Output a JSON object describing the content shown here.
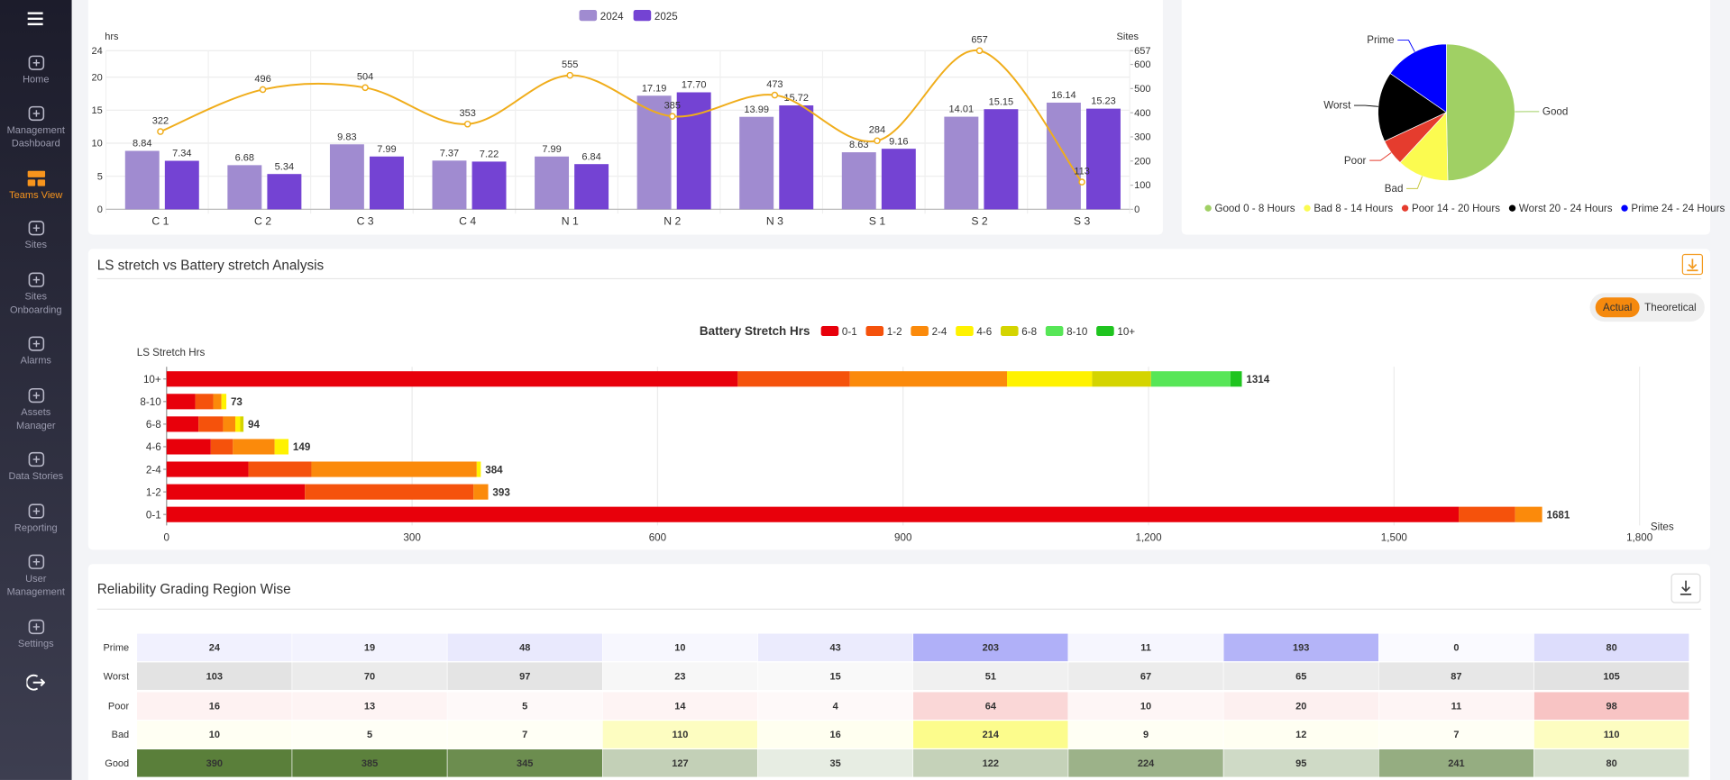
{
  "sidebar": {
    "items": [
      "Home",
      "Management Dashboard",
      "Teams View",
      "Sites",
      "Sites Onboarding",
      "Alarms",
      "Assets Manager",
      "Data Stories",
      "Reporting",
      "User Management",
      "Settings"
    ],
    "active_index": 2
  },
  "controls": {
    "options": [
      "Actual",
      "Theoretical"
    ],
    "selected": 0
  },
  "chart_data": [
    {
      "type": "combo",
      "y_label": "hrs",
      "y2_label": "Sites",
      "categories": [
        "C 1",
        "C 2",
        "C 3",
        "C 4",
        "N 1",
        "N 2",
        "N 3",
        "S 1",
        "S 2",
        "S 3"
      ],
      "series": [
        {
          "name": "2024",
          "kind": "bar",
          "color": "#a08bd0",
          "values": [
            8.84,
            6.68,
            9.83,
            7.37,
            7.99,
            17.19,
            13.99,
            8.63,
            14.01,
            16.14
          ]
        },
        {
          "name": "2025",
          "kind": "bar",
          "color": "#7443d3",
          "values": [
            7.34,
            5.34,
            7.99,
            7.22,
            6.84,
            17.7,
            15.72,
            9.16,
            15.15,
            15.23
          ],
          "value_labels": [
            "7.34",
            "5.34",
            "7.99",
            "7.22",
            "6.84",
            "17.70",
            "15.72",
            "9.16",
            "15.15",
            "15.23"
          ]
        },
        {
          "kind": "line",
          "axis": "y2",
          "color": "#f0ad1b",
          "values": [
            322,
            496,
            504,
            353,
            555,
            385,
            473,
            284,
            657,
            113
          ]
        }
      ],
      "ylim": [
        0,
        24
      ],
      "yticks": [
        0,
        5,
        10,
        15,
        20,
        24
      ],
      "y2lim": [
        0,
        657
      ],
      "y2ticks": [
        0,
        100,
        200,
        300,
        400,
        500,
        600,
        657
      ],
      "grid": true
    },
    {
      "type": "pie",
      "categories": [
        "Good",
        "Bad",
        "Poor",
        "Worst",
        "Prime"
      ],
      "legend": [
        "Good 0 - 8 Hours",
        "Bad 8 - 14 Hours",
        "Poor 14 - 20 Hours",
        "Worst 20 - 24 Hours",
        "Prime 24 - 24 Hours"
      ],
      "values": [
        2044,
        500,
        255,
        683,
        631
      ],
      "colors": [
        "#a0d064",
        "#fbfb50",
        "#e53c2e",
        "#000000",
        "#0000ff"
      ]
    },
    {
      "type": "stacked_hbar",
      "title": "LS stretch vs Battery stretch Analysis",
      "legend_title": "Battery Stretch Hrs",
      "y_label": "LS Stretch Hrs",
      "x_label": "Sites",
      "categories": [
        "0-1",
        "1-2",
        "2-4",
        "4-6",
        "6-8",
        "8-10",
        "10+"
      ],
      "series": [
        {
          "name": "0-1",
          "color": "#e8000b",
          "values": [
            1579,
            169,
            100,
            54,
            39,
            35,
            698
          ]
        },
        {
          "name": "1-2",
          "color": "#f5520c",
          "values": [
            69,
            206,
            77,
            27,
            30,
            22,
            137
          ]
        },
        {
          "name": "2-4",
          "color": "#fb8a0b",
          "values": [
            33,
            18,
            202,
            51,
            15,
            10,
            192
          ]
        },
        {
          "name": "4-6",
          "color": "#fff200",
          "values": [
            0,
            0,
            5,
            17,
            6,
            6,
            104
          ]
        },
        {
          "name": "6-8",
          "color": "#d4d400",
          "values": [
            0,
            0,
            0,
            0,
            4,
            0,
            72
          ]
        },
        {
          "name": "8-10",
          "color": "#57e657",
          "values": [
            0,
            0,
            0,
            0,
            0,
            0,
            97
          ]
        },
        {
          "name": "10+",
          "color": "#1fc41f",
          "values": [
            0,
            0,
            0,
            0,
            0,
            0,
            14
          ]
        }
      ],
      "totals": [
        1681,
        393,
        384,
        149,
        94,
        73,
        1314
      ],
      "xlim": [
        0,
        1800
      ],
      "xticks": [
        0,
        300,
        600,
        900,
        {
          "value": 1200,
          "label": "1,200"
        },
        {
          "value": 1500,
          "label": "1,500"
        },
        {
          "value": 1800,
          "label": "1,800"
        }
      ],
      "grid": true
    },
    {
      "type": "heatmap",
      "title": "Reliability Grading Region Wise",
      "rows": [
        "Prime",
        "Worst",
        "Poor",
        "Bad",
        "Good"
      ],
      "colors": [
        "#b0b0f8",
        "#e2e2e2",
        "#f8c4c4",
        "#fcfc8c",
        "#5a7f3a"
      ],
      "values": [
        [
          24,
          19,
          48,
          10,
          43,
          203,
          11,
          193,
          0,
          80
        ],
        [
          103,
          70,
          97,
          23,
          15,
          51,
          67,
          65,
          87,
          105
        ],
        [
          16,
          13,
          5,
          14,
          4,
          64,
          10,
          20,
          11,
          98
        ],
        [
          10,
          5,
          7,
          110,
          16,
          214,
          9,
          12,
          7,
          110
        ],
        [
          390,
          385,
          345,
          127,
          35,
          122,
          224,
          95,
          241,
          80
        ]
      ]
    }
  ]
}
